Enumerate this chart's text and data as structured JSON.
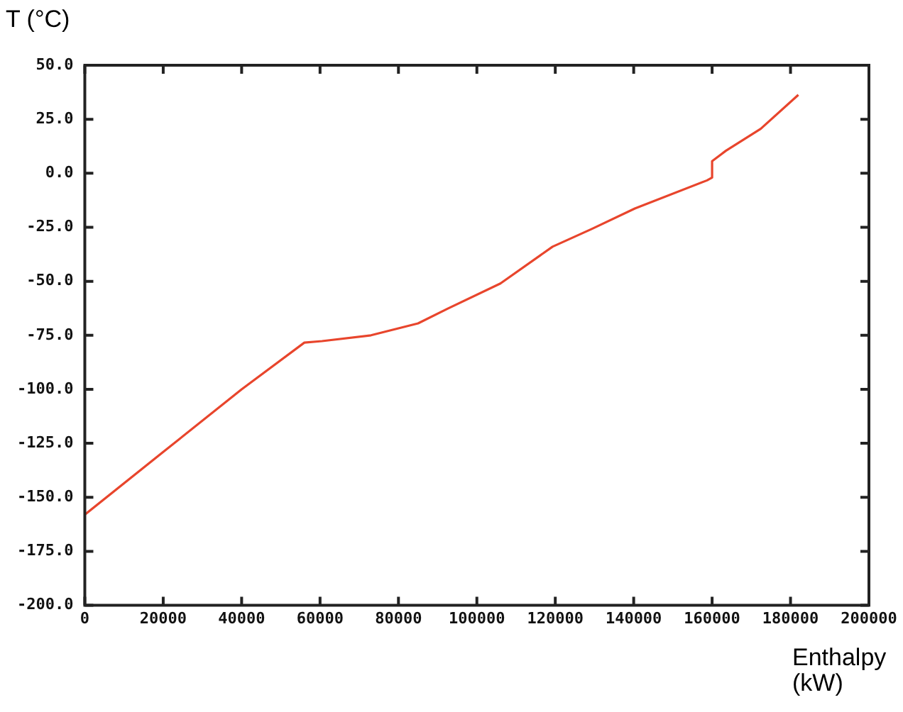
{
  "chart_data": {
    "type": "line",
    "xlabel": "Enthalpy (kW)",
    "ylabel": "T (°C)",
    "x": [
      0,
      20000,
      40000,
      56000,
      60500,
      73000,
      85000,
      92500,
      106000,
      119300,
      129300,
      140300,
      158700,
      160000,
      160000,
      163500,
      172400,
      182000
    ],
    "series": [
      {
        "color": "#e8452c",
        "values": [
          -158,
          -129,
          -100,
          -78.4,
          -77.7,
          -75,
          -69.5,
          -62.7,
          -51,
          -34,
          -25.8,
          -16.3,
          -3.3,
          -2,
          5.6,
          10.4,
          20.6,
          36.3
        ]
      }
    ],
    "xlim": [
      0,
      200000
    ],
    "xticks": [
      0,
      20000,
      40000,
      60000,
      80000,
      100000,
      120000,
      140000,
      160000,
      180000,
      200000
    ],
    "ylim": [
      -200,
      50
    ],
    "yticks": [
      {
        "value": -200,
        "label": "-200.0"
      },
      {
        "value": -175,
        "label": "-175.0"
      },
      {
        "value": -150,
        "label": "-150.0"
      },
      {
        "value": -125,
        "label": "-125.0"
      },
      {
        "value": -100,
        "label": "-100.0"
      },
      {
        "value": -75,
        "label": "-75.0"
      },
      {
        "value": -50,
        "label": "-50.0"
      },
      {
        "value": -25,
        "label": "-25.0"
      },
      {
        "value": 0,
        "label": "0.0"
      },
      {
        "value": 25,
        "label": "25.0"
      },
      {
        "value": 50,
        "label": "50.0"
      }
    ],
    "grid": false,
    "marker": "none",
    "line_style": "solid"
  }
}
